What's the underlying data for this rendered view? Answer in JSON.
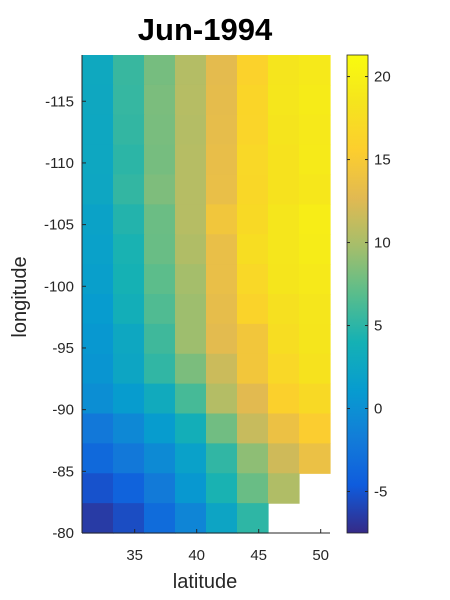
{
  "chart_data": {
    "type": "heatmap",
    "title": "Jun-1994",
    "xlabel": "latitude",
    "ylabel": "longitude",
    "x_ticks": [
      35,
      40,
      45,
      50
    ],
    "y_ticks": [
      -115,
      -110,
      -105,
      -100,
      -95,
      -90,
      -85,
      -80
    ],
    "x_columns": [
      32,
      34.5,
      37,
      39.5,
      42,
      44.5,
      47,
      49.5
    ],
    "y_rows": [
      -117.5,
      -115,
      -112.5,
      -110,
      -107.5,
      -105,
      -102.5,
      -100,
      -97.5,
      -95,
      -92.5,
      -90,
      -87.5,
      -85,
      -82.5,
      -80
    ],
    "colorbar_ticks": [
      -5,
      0,
      5,
      10,
      15,
      20
    ],
    "color_range": [
      -7.5,
      21.3
    ],
    "colormap": "parula",
    "grid": false,
    "values": [
      [
        2.8,
        5.5,
        8.0,
        10.5,
        13.0,
        16.0,
        18.5,
        19.0
      ],
      [
        2.7,
        5.4,
        8.2,
        10.6,
        13.1,
        16.5,
        18.7,
        19.3
      ],
      [
        2.6,
        5.3,
        8.1,
        10.5,
        13.2,
        16.4,
        18.4,
        19.0
      ],
      [
        2.6,
        5.0,
        8.0,
        10.6,
        13.4,
        16.8,
        18.2,
        19.2
      ],
      [
        2.5,
        5.3,
        8.3,
        10.6,
        13.5,
        16.7,
        18.2,
        18.8
      ],
      [
        2.0,
        4.6,
        7.6,
        10.6,
        14.4,
        17.0,
        18.7,
        19.6
      ],
      [
        1.8,
        4.2,
        7.5,
        10.3,
        13.5,
        17.5,
        18.7,
        19.4
      ],
      [
        1.6,
        4.0,
        7.0,
        9.8,
        13.5,
        16.8,
        18.6,
        19.0
      ],
      [
        1.1,
        3.6,
        6.5,
        9.5,
        13.2,
        16.2,
        17.9,
        18.7
      ],
      [
        0.8,
        2.6,
        5.8,
        9.5,
        12.9,
        14.5,
        17.5,
        18.6
      ],
      [
        0.5,
        2.4,
        5.2,
        8.2,
        11.6,
        14.5,
        16.8,
        18.2
      ],
      [
        -0.2,
        1.2,
        3.1,
        6.1,
        10.5,
        12.8,
        15.8,
        17.0
      ],
      [
        -2.2,
        -0.7,
        1.2,
        3.6,
        7.8,
        11.4,
        13.8,
        15.4
      ],
      [
        -3.5,
        -2.2,
        -0.5,
        1.8,
        5.2,
        8.9,
        11.8,
        13.7
      ],
      [
        -5.2,
        -4.0,
        -2.0,
        0.8,
        4.2,
        7.5,
        10.3,
        null
      ],
      [
        -6.5,
        -5.5,
        -3.2,
        -1.0,
        2.3,
        5.1,
        null,
        null
      ]
    ]
  }
}
